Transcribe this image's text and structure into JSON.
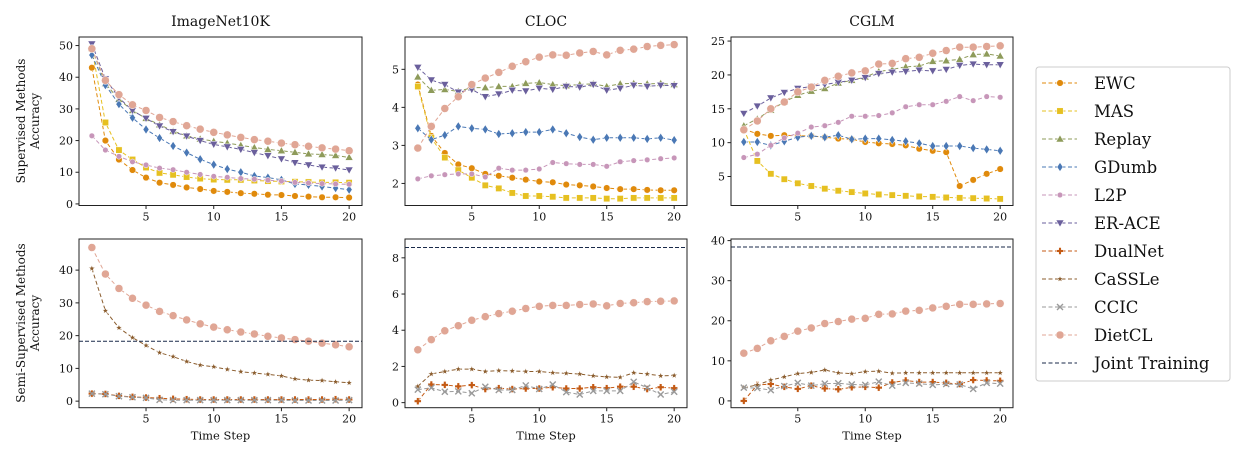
{
  "series_styles": {
    "EWC": {
      "color": "#e08a0b",
      "marker": "circle"
    },
    "MAS": {
      "color": "#e6c021",
      "marker": "square"
    },
    "Replay": {
      "color": "#8e9b5a",
      "marker": "triangle-up"
    },
    "GDumb": {
      "color": "#4a78b5",
      "marker": "diamond"
    },
    "L2P": {
      "color": "#c796b9",
      "marker": "small-circle"
    },
    "ER-ACE": {
      "color": "#6a5f9c",
      "marker": "triangle-down"
    },
    "DualNet": {
      "color": "#c45a14",
      "marker": "plus"
    },
    "CaSSLe": {
      "color": "#8b5d2e",
      "marker": "star"
    },
    "CCIC": {
      "color": "#9a9a9a",
      "marker": "x"
    },
    "DietCL": {
      "color": "#e0a695",
      "marker": "big-circle"
    },
    "Joint Training": {
      "color": "#1a2a4a",
      "marker": "none"
    }
  },
  "legend": {
    "placement": "right",
    "entries": [
      "EWC",
      "MAS",
      "Replay",
      "GDumb",
      "L2P",
      "ER-ACE",
      "DualNet",
      "CaSSLe",
      "CCIC",
      "DietCL",
      "Joint Training"
    ]
  },
  "row_labels": {
    "top": [
      "Supervised Methods",
      "Accuracy"
    ],
    "bottom": [
      "Semi-Supervised Methods",
      "Accuracy"
    ]
  },
  "chart_data": [
    {
      "type": "line",
      "title": "ImageNet10K",
      "xlabel": "",
      "ylabel": "Supervised Methods Accuracy",
      "xlim": [
        0.05,
        20.95
      ],
      "ylim": [
        -0.5,
        52.7
      ],
      "xticks": [
        5,
        10,
        15,
        20
      ],
      "yticks": [
        0,
        10,
        20,
        30,
        40,
        50
      ],
      "grid": false,
      "x": [
        1,
        2,
        3,
        4,
        5,
        6,
        7,
        8,
        9,
        10,
        11,
        12,
        13,
        14,
        15,
        16,
        17,
        18,
        19,
        20
      ],
      "series": [
        {
          "name": "EWC",
          "values": [
            43,
            20,
            14,
            10.7,
            8.3,
            6.7,
            6,
            5.2,
            4.7,
            4.1,
            3.8,
            3.4,
            3.2,
            2.9,
            2.8,
            2.5,
            2.3,
            2.1,
            2.1,
            2.0
          ]
        },
        {
          "name": "MAS",
          "values": [
            49,
            25.7,
            17,
            14,
            11.5,
            9.8,
            9.2,
            8.5,
            8,
            7.7,
            7.6,
            7.6,
            7.4,
            7.2,
            7.1,
            7,
            6.9,
            6.8,
            6.8,
            6.7
          ]
        },
        {
          "name": "Replay",
          "values": [
            49,
            38,
            33,
            29.5,
            27,
            25,
            23,
            21.5,
            20.5,
            19.8,
            19.2,
            18.5,
            17.8,
            17.2,
            16.8,
            16.3,
            15.8,
            15.6,
            15.3,
            14.7
          ]
        },
        {
          "name": "GDumb",
          "values": [
            47,
            37.5,
            31.5,
            27.2,
            23.5,
            20.8,
            18.3,
            16.2,
            14.1,
            12.4,
            11,
            10,
            8.8,
            8.3,
            7.6,
            6.3,
            6,
            5.5,
            5,
            4.5
          ]
        },
        {
          "name": "L2P",
          "values": [
            21.5,
            17,
            15,
            13.3,
            12.3,
            11.3,
            10.8,
            10,
            9.3,
            8.7,
            8.4,
            8,
            7.8,
            7.5,
            7.2,
            6.8,
            6.6,
            6.4,
            6.3,
            6.2
          ]
        },
        {
          "name": "ER-ACE",
          "values": [
            50.5,
            39.5,
            33.5,
            29.5,
            27,
            24.6,
            22.8,
            21.4,
            20,
            18.8,
            18,
            17.2,
            16.2,
            15.2,
            14.2,
            13,
            12.3,
            11.6,
            11.3,
            10.7
          ]
        },
        {
          "name": "DietCL",
          "values": [
            49,
            39,
            34.5,
            31.3,
            29.5,
            27.3,
            26,
            24.7,
            23.6,
            22.6,
            21.8,
            21,
            20.3,
            19.8,
            19.2,
            18.7,
            18.2,
            17.7,
            17.3,
            16.8
          ]
        }
      ]
    },
    {
      "type": "line",
      "title": "CLOC",
      "xlabel": "",
      "ylabel": "",
      "xlim": [
        0.05,
        20.95
      ],
      "ylim": [
        1.42,
        5.85
      ],
      "xticks": [
        5,
        10,
        15,
        20
      ],
      "yticks": [
        2,
        3,
        4,
        5
      ],
      "grid": false,
      "x": [
        1,
        2,
        3,
        4,
        5,
        6,
        7,
        8,
        9,
        10,
        11,
        12,
        13,
        14,
        15,
        16,
        17,
        18,
        19,
        20
      ],
      "series": [
        {
          "name": "EWC",
          "values": [
            4.6,
            3.25,
            2.8,
            2.5,
            2.4,
            2.25,
            2.2,
            2.15,
            2.1,
            2.05,
            2.03,
            1.97,
            1.95,
            1.92,
            1.88,
            1.85,
            1.85,
            1.83,
            1.82,
            1.82
          ]
        },
        {
          "name": "MAS",
          "values": [
            4.55,
            3.2,
            2.68,
            2.35,
            2.15,
            1.95,
            1.87,
            1.75,
            1.67,
            1.67,
            1.65,
            1.62,
            1.62,
            1.62,
            1.6,
            1.6,
            1.62,
            1.62,
            1.62,
            1.62
          ]
        },
        {
          "name": "Replay",
          "values": [
            4.8,
            4.45,
            4.47,
            4.42,
            4.52,
            4.52,
            4.55,
            4.55,
            4.63,
            4.65,
            4.6,
            4.57,
            4.6,
            4.62,
            4.55,
            4.62,
            4.63,
            4.62,
            4.63,
            4.6
          ]
        },
        {
          "name": "GDumb",
          "values": [
            3.45,
            3.15,
            3.27,
            3.5,
            3.45,
            3.42,
            3.3,
            3.32,
            3.35,
            3.35,
            3.42,
            3.32,
            3.22,
            3.15,
            3.2,
            3.2,
            3.2,
            3.17,
            3.2,
            3.14
          ]
        },
        {
          "name": "L2P",
          "values": [
            2.12,
            2.2,
            2.23,
            2.25,
            2.25,
            2.17,
            2.4,
            2.35,
            2.35,
            2.38,
            2.55,
            2.52,
            2.5,
            2.5,
            2.45,
            2.57,
            2.6,
            2.62,
            2.65,
            2.67
          ]
        },
        {
          "name": "ER-ACE",
          "values": [
            5.05,
            4.72,
            4.6,
            4.4,
            4.47,
            4.28,
            4.35,
            4.45,
            4.43,
            4.5,
            4.47,
            4.55,
            4.53,
            4.6,
            4.45,
            4.5,
            4.58,
            4.55,
            4.58,
            4.57
          ]
        },
        {
          "name": "DietCL",
          "values": [
            2.93,
            3.5,
            3.97,
            4.28,
            4.6,
            4.77,
            4.92,
            5.08,
            5.2,
            5.32,
            5.38,
            5.37,
            5.43,
            5.47,
            5.38,
            5.5,
            5.53,
            5.6,
            5.63,
            5.65
          ]
        }
      ]
    },
    {
      "type": "line",
      "title": "CGLM",
      "xlabel": "",
      "ylabel": "",
      "xlim": [
        0.05,
        20.95
      ],
      "ylim": [
        0.72,
        25.6
      ],
      "xticks": [
        5,
        10,
        15,
        20
      ],
      "yticks": [
        5,
        10,
        15,
        20,
        25
      ],
      "grid": false,
      "x": [
        1,
        2,
        3,
        4,
        5,
        6,
        7,
        8,
        9,
        10,
        11,
        12,
        13,
        14,
        15,
        16,
        17,
        18,
        19,
        20
      ],
      "series": [
        {
          "name": "EWC",
          "values": [
            12,
            11.3,
            11,
            11.1,
            11,
            11,
            10.8,
            10.6,
            10.5,
            10.1,
            9.9,
            9.8,
            9.6,
            9.1,
            8.8,
            8.6,
            3.6,
            4.5,
            5.4,
            6.1
          ]
        },
        {
          "name": "MAS",
          "values": [
            12,
            7.3,
            5.4,
            4.6,
            4,
            3.6,
            3.2,
            2.9,
            2.7,
            2.5,
            2.35,
            2.25,
            2.15,
            2.05,
            2.0,
            1.9,
            1.85,
            1.8,
            1.75,
            1.7
          ]
        },
        {
          "name": "Replay",
          "values": [
            12.5,
            13.5,
            14.8,
            16,
            17,
            17.6,
            18,
            18.8,
            19.2,
            19.7,
            20.5,
            20.8,
            21.2,
            21.3,
            22,
            22.1,
            22.3,
            23,
            23.1,
            22.8
          ]
        },
        {
          "name": "GDumb",
          "values": [
            10.1,
            10.1,
            9.6,
            10.2,
            10.8,
            11,
            10.8,
            11.1,
            10.5,
            10.6,
            10.6,
            10.4,
            10.2,
            9.9,
            9.5,
            9.5,
            9.5,
            9.2,
            9,
            8.8
          ]
        },
        {
          "name": "L2P",
          "values": [
            7.8,
            8.3,
            9.6,
            10.7,
            11.4,
            12.3,
            12.5,
            13,
            13.9,
            13.9,
            14,
            14.4,
            15.3,
            15.6,
            15.6,
            16.1,
            16.8,
            16.2,
            16.8,
            16.7
          ]
        },
        {
          "name": "ER-ACE",
          "values": [
            14.3,
            15.4,
            16.6,
            17.4,
            18,
            18.3,
            18.6,
            18.9,
            19.2,
            19.6,
            20.2,
            20.4,
            20.5,
            20.7,
            20.6,
            20.8,
            21.4,
            21.6,
            21.5,
            21.5
          ]
        },
        {
          "name": "DietCL",
          "values": [
            11.9,
            13.2,
            15,
            16,
            17.5,
            18.2,
            19.2,
            19.8,
            20.3,
            20.6,
            21.6,
            21.7,
            22.4,
            22.6,
            23.2,
            23.6,
            24.1,
            24.1,
            24.2,
            24.3
          ]
        }
      ]
    },
    {
      "type": "line",
      "title": "",
      "xlabel": "Time Step",
      "ylabel": "Semi-Supervised Methods Accuracy",
      "xlim": [
        0.05,
        20.95
      ],
      "ylim": [
        -2.0,
        49.5
      ],
      "xticks": [
        5,
        10,
        15,
        20
      ],
      "yticks": [
        0,
        10,
        20,
        30,
        40
      ],
      "grid": false,
      "x": [
        1,
        2,
        3,
        4,
        5,
        6,
        7,
        8,
        9,
        10,
        11,
        12,
        13,
        14,
        15,
        16,
        17,
        18,
        19,
        20
      ],
      "hline": {
        "name": "Joint Training",
        "value": 18.3
      },
      "series": [
        {
          "name": "DualNet",
          "values": [
            2.3,
            2.2,
            1.6,
            1.3,
            1.1,
            0.9,
            0.7,
            0.6,
            0.5,
            0.5,
            0.5,
            0.5,
            0.5,
            0.5,
            0.5,
            0.5,
            0.5,
            0.5,
            0.6,
            0.5
          ]
        },
        {
          "name": "CaSSLe",
          "values": [
            40.5,
            27.6,
            22.4,
            19.4,
            17,
            14.8,
            13.6,
            12.1,
            11,
            10.5,
            9.7,
            9,
            8.6,
            8.2,
            7.7,
            6.8,
            6.4,
            6.3,
            5.9,
            5.6
          ]
        },
        {
          "name": "CCIC",
          "values": [
            2.3,
            2.1,
            1.5,
            1.2,
            1.0,
            0.4,
            0.3,
            0.3,
            0.3,
            0.3,
            0.3,
            0.3,
            0.3,
            0.3,
            0.3,
            0.2,
            0.2,
            0.2,
            0.2,
            0.3
          ]
        },
        {
          "name": "DietCL",
          "values": [
            46.9,
            38.8,
            34.4,
            31.4,
            29.3,
            27.4,
            26.1,
            24.8,
            23.6,
            22.6,
            21.8,
            21.1,
            20.5,
            19.8,
            19.3,
            18.8,
            18.3,
            17.7,
            17.2,
            16.6
          ]
        }
      ]
    },
    {
      "type": "line",
      "title": "",
      "xlabel": "Time Step",
      "ylabel": "",
      "xlim": [
        0.05,
        20.95
      ],
      "ylim": [
        -0.28,
        9.04
      ],
      "xticks": [
        5,
        10,
        15,
        20
      ],
      "yticks": [
        0,
        2,
        4,
        6,
        8
      ],
      "grid": false,
      "x": [
        1,
        2,
        3,
        4,
        5,
        6,
        7,
        8,
        9,
        10,
        11,
        12,
        13,
        14,
        15,
        16,
        17,
        18,
        19,
        20
      ],
      "hline": {
        "name": "Joint Training",
        "value": 8.57
      },
      "series": [
        {
          "name": "DualNet",
          "values": [
            0.08,
            1.0,
            0.98,
            0.9,
            0.97,
            0.75,
            0.8,
            0.75,
            0.78,
            0.78,
            0.85,
            0.78,
            0.78,
            0.85,
            0.8,
            0.88,
            0.88,
            0.75,
            0.85,
            0.8
          ]
        },
        {
          "name": "CaSSLe",
          "values": [
            0.9,
            1.58,
            1.72,
            1.85,
            1.85,
            1.72,
            1.77,
            1.75,
            1.72,
            1.72,
            1.65,
            1.62,
            1.58,
            1.48,
            1.42,
            1.4,
            1.65,
            1.58,
            1.48,
            1.5
          ]
        },
        {
          "name": "CCIC",
          "values": [
            0.72,
            0.82,
            0.6,
            0.62,
            0.52,
            0.88,
            0.7,
            0.7,
            0.95,
            0.75,
            1.0,
            0.58,
            0.45,
            0.65,
            0.65,
            0.65,
            1.15,
            0.82,
            0.45,
            0.6
          ]
        },
        {
          "name": "DietCL",
          "values": [
            2.92,
            3.48,
            3.97,
            4.25,
            4.55,
            4.75,
            4.92,
            5.05,
            5.2,
            5.32,
            5.37,
            5.37,
            5.42,
            5.45,
            5.35,
            5.48,
            5.52,
            5.58,
            5.6,
            5.62
          ]
        }
      ]
    },
    {
      "type": "line",
      "title": "",
      "xlabel": "Time Step",
      "ylabel": "",
      "xlim": [
        0.05,
        20.95
      ],
      "ylim": [
        -1.7,
        40.4
      ],
      "xticks": [
        5,
        10,
        15,
        20
      ],
      "yticks": [
        0,
        10,
        20,
        30,
        40
      ],
      "grid": false,
      "x": [
        1,
        2,
        3,
        4,
        5,
        6,
        7,
        8,
        9,
        10,
        11,
        12,
        13,
        14,
        15,
        16,
        17,
        18,
        19,
        20
      ],
      "hline": {
        "name": "Joint Training",
        "value": 38.4
      },
      "series": [
        {
          "name": "DualNet",
          "values": [
            0,
            4,
            4.2,
            3.5,
            3,
            3.8,
            3.1,
            2.9,
            3.4,
            3.5,
            3.3,
            4.6,
            5.1,
            4.7,
            4.7,
            4.5,
            4.2,
            5.2,
            5.1,
            5
          ]
        },
        {
          "name": "CaSSLe",
          "values": [
            3.3,
            4,
            5.2,
            6,
            6.8,
            7.1,
            7.7,
            7,
            6.8,
            7.3,
            7.4,
            6.9,
            7,
            7,
            7,
            7,
            7,
            7,
            7,
            7
          ]
        },
        {
          "name": "CCIC",
          "values": [
            3.3,
            3.2,
            2.7,
            3.7,
            4.5,
            3.8,
            4.3,
            4.4,
            4.1,
            4,
            4.8,
            3.8,
            4.5,
            4.3,
            4,
            4.2,
            4.1,
            3,
            4.5,
            4.3
          ]
        },
        {
          "name": "DietCL",
          "values": [
            11.9,
            13.1,
            15,
            16.1,
            17.4,
            18.2,
            19.3,
            19.8,
            20.4,
            20.6,
            21.6,
            21.7,
            22.4,
            22.6,
            23.2,
            23.6,
            24.1,
            24.1,
            24.2,
            24.3
          ]
        }
      ]
    }
  ]
}
